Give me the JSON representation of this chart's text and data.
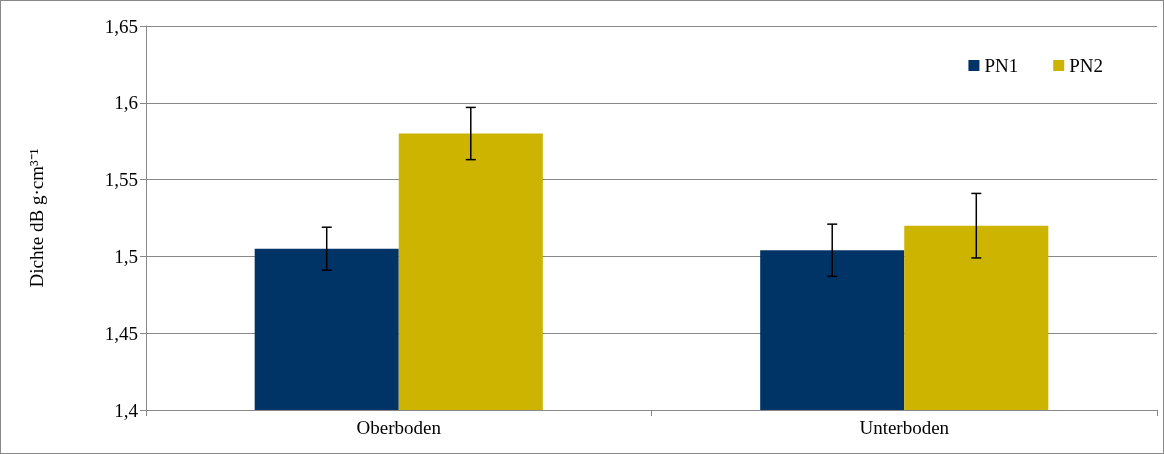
{
  "chart_data": {
    "type": "bar",
    "ylabel": "Dichte dB g·cm³⁻¹",
    "categories": [
      "Oberboden",
      "Unterboden"
    ],
    "series": [
      {
        "name": "PN1",
        "color": "#003366",
        "values": [
          1.505,
          1.504
        ],
        "errors": [
          0.014,
          0.017
        ]
      },
      {
        "name": "PN2",
        "color": "#ccb400",
        "values": [
          1.58,
          1.52
        ],
        "errors": [
          0.017,
          0.021
        ]
      }
    ],
    "ylim": [
      1.4,
      1.65
    ],
    "yticks": [
      {
        "value": 1.4,
        "label": "1,4"
      },
      {
        "value": 1.45,
        "label": "1,45"
      },
      {
        "value": 1.5,
        "label": "1,5"
      },
      {
        "value": 1.55,
        "label": "1,55"
      },
      {
        "value": 1.6,
        "label": "1,6"
      },
      {
        "value": 1.65,
        "label": "1,65"
      }
    ],
    "grid": "y",
    "legend": "top right"
  }
}
